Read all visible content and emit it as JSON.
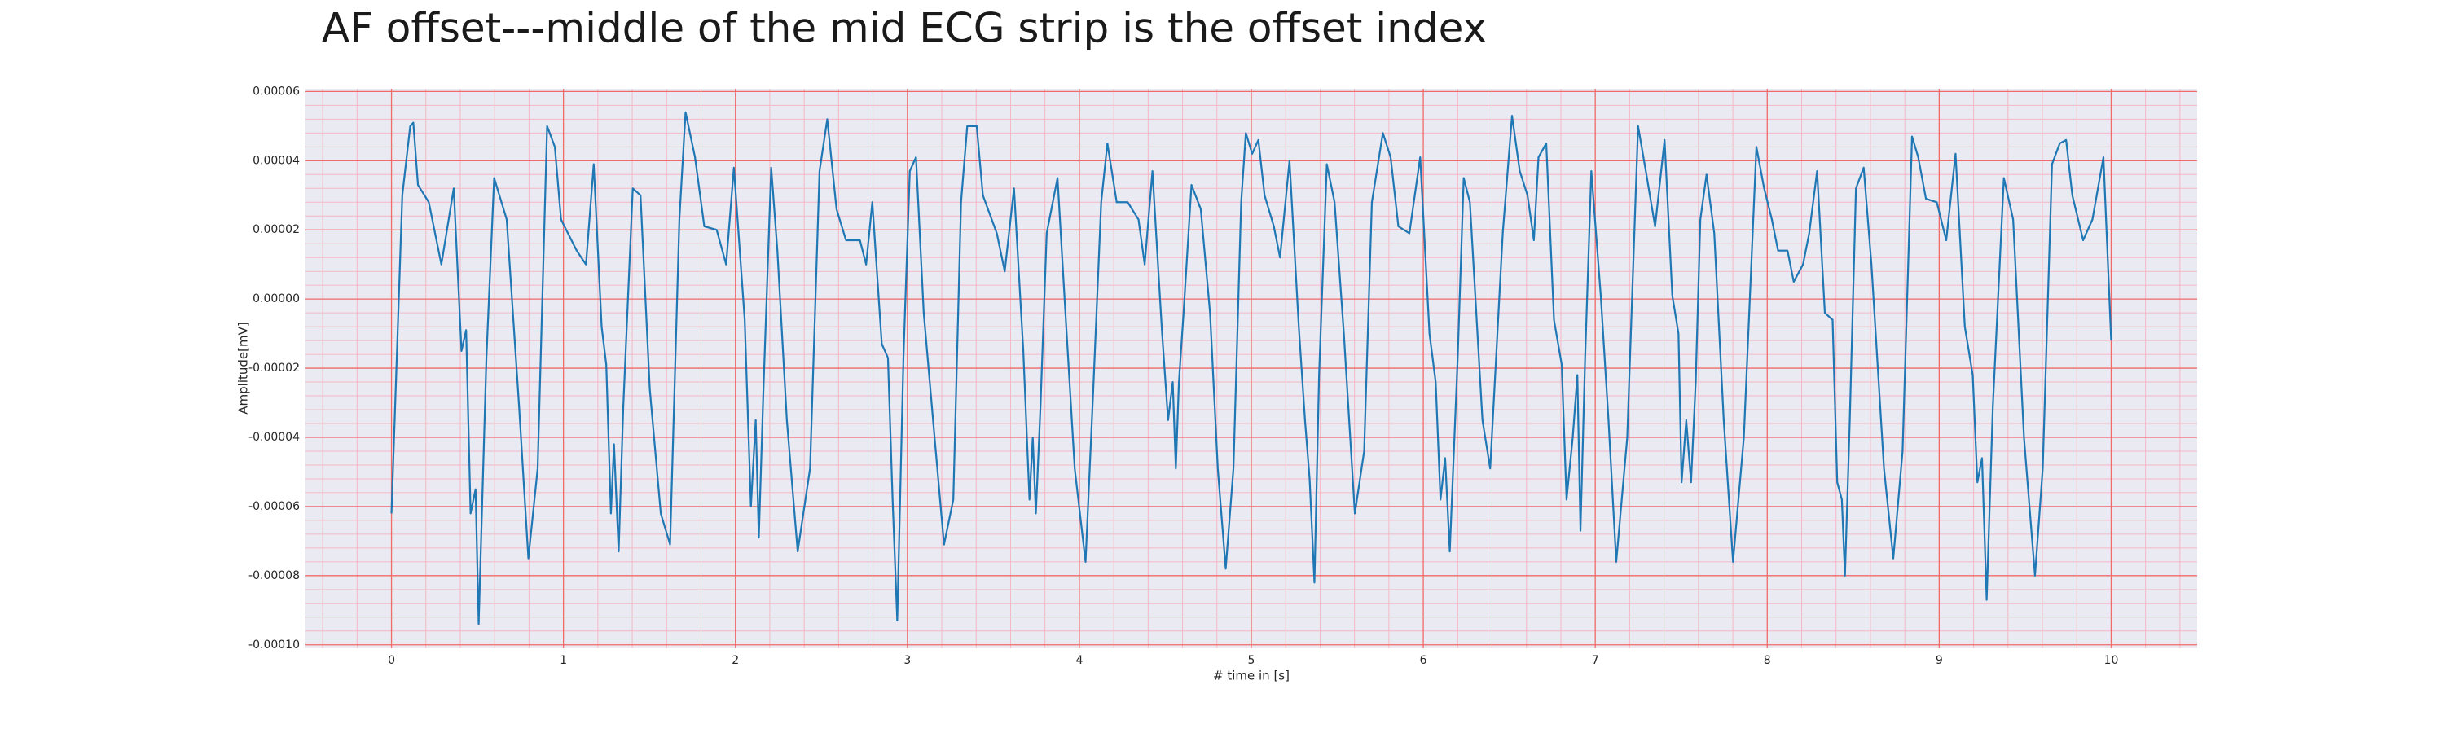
{
  "chart_data": {
    "type": "line",
    "title": "AF offset---middle of the mid ECG strip is the offset index",
    "xlabel": "# time in [s]",
    "ylabel": "Amplitude[mV]",
    "color": "#1f77b4",
    "grid": true,
    "minor_grid": true,
    "xlim": [
      -0.5,
      10.5
    ],
    "ylim": [
      -0.000101,
      6.08e-05
    ],
    "xticks": [
      0,
      1,
      2,
      3,
      4,
      5,
      6,
      7,
      8,
      9,
      10
    ],
    "yticks": [
      {
        "value": -0.0001,
        "label": "-0.00010"
      },
      -8e-05,
      -6e-05,
      -4e-05,
      -2e-05,
      {
        "value": 0,
        "label": "0.00000"
      },
      2e-05,
      4e-05,
      6e-05
    ],
    "x": [
      0,
      0.063,
      0.109,
      0.127,
      0.154,
      0.217,
      0.29,
      0.362,
      0.407,
      0.434,
      0.46,
      0.489,
      0.507,
      0.552,
      0.597,
      0.67,
      0.742,
      0.796,
      0.85,
      0.905,
      0.95,
      0.986,
      1.077,
      1.131,
      1.176,
      1.222,
      1.249,
      1.276,
      1.294,
      1.321,
      1.348,
      1.403,
      1.448,
      1.502,
      1.566,
      1.62,
      1.674,
      1.71,
      1.765,
      1.819,
      1.891,
      1.946,
      1.991,
      2.054,
      2.09,
      2.118,
      2.136,
      2.163,
      2.208,
      2.244,
      2.299,
      2.362,
      2.434,
      2.489,
      2.534,
      2.588,
      2.643,
      2.724,
      2.76,
      2.796,
      2.851,
      2.887,
      2.914,
      2.941,
      2.977,
      3.014,
      3.05,
      3.095,
      3.158,
      3.213,
      3.267,
      3.312,
      3.348,
      3.403,
      3.439,
      3.52,
      3.566,
      3.62,
      3.674,
      3.71,
      3.729,
      3.747,
      3.774,
      3.81,
      3.873,
      3.919,
      3.973,
      4.036,
      4.081,
      4.127,
      4.163,
      4.217,
      4.281,
      4.344,
      4.38,
      4.425,
      4.48,
      4.516,
      4.543,
      4.561,
      4.579,
      4.606,
      4.652,
      4.706,
      4.76,
      4.805,
      4.851,
      4.896,
      4.941,
      4.968,
      5.005,
      5.041,
      5.077,
      5.131,
      5.167,
      5.222,
      5.276,
      5.312,
      5.339,
      5.367,
      5.394,
      5.439,
      5.484,
      5.538,
      5.602,
      5.656,
      5.701,
      5.765,
      5.81,
      5.855,
      5.919,
      5.982,
      6.036,
      6.072,
      6.1,
      6.127,
      6.154,
      6.2,
      6.235,
      6.271,
      6.344,
      6.389,
      6.462,
      6.516,
      6.561,
      6.606,
      6.643,
      6.67,
      6.715,
      6.76,
      6.805,
      6.833,
      6.869,
      6.896,
      6.914,
      6.941,
      6.977,
      7.032,
      7.077,
      7.122,
      7.186,
      7.249,
      7.294,
      7.348,
      7.403,
      7.448,
      7.484,
      7.502,
      7.529,
      7.557,
      7.584,
      7.611,
      7.647,
      7.692,
      7.747,
      7.801,
      7.864,
      7.937,
      7.982,
      8.027,
      8.063,
      8.118,
      8.154,
      8.208,
      8.244,
      8.29,
      8.335,
      8.38,
      8.407,
      8.434,
      8.452,
      8.48,
      8.516,
      8.561,
      8.606,
      8.679,
      8.733,
      8.787,
      8.842,
      8.878,
      8.923,
      8.986,
      9.041,
      9.095,
      9.149,
      9.195,
      9.222,
      9.249,
      9.276,
      9.312,
      9.376,
      9.43,
      9.493,
      9.557,
      9.602,
      9.656,
      9.701,
      9.738,
      9.774,
      9.837,
      9.891,
      9.955,
      10.0
    ],
    "values": [
      -6.2e-05,
      3e-05,
      5e-05,
      5.1e-05,
      3.3e-05,
      2.8e-05,
      1e-05,
      3.2e-05,
      -1.5e-05,
      -9e-06,
      -6.2e-05,
      -5.5e-05,
      -9.4e-05,
      -1.7e-05,
      3.5e-05,
      2.3e-05,
      -3.1e-05,
      -7.5e-05,
      -4.9e-05,
      5e-05,
      4.4e-05,
      2.3e-05,
      1.4e-05,
      1e-05,
      3.9e-05,
      -8e-06,
      -1.9e-05,
      -6.2e-05,
      -4.2e-05,
      -7.3e-05,
      -3.1e-05,
      3.2e-05,
      3e-05,
      -2.6e-05,
      -6.2e-05,
      -7.1e-05,
      2.3e-05,
      5.4e-05,
      4.1e-05,
      2.1e-05,
      2e-05,
      1e-05,
      3.8e-05,
      -6e-06,
      -6e-05,
      -3.5e-05,
      -6.9e-05,
      -2.6e-05,
      3.8e-05,
      1.4e-05,
      -3.5e-05,
      -7.3e-05,
      -4.9e-05,
      3.7e-05,
      5.2e-05,
      2.6e-05,
      1.7e-05,
      1.7e-05,
      1e-05,
      2.8e-05,
      -1.3e-05,
      -1.7e-05,
      -5.8e-05,
      -9.3e-05,
      -1.7e-05,
      3.7e-05,
      4.1e-05,
      -4e-06,
      -4e-05,
      -7.1e-05,
      -5.8e-05,
      2.8e-05,
      5e-05,
      5e-05,
      3e-05,
      1.9e-05,
      8e-06,
      3.2e-05,
      -1.5e-05,
      -5.8e-05,
      -4e-05,
      -6.2e-05,
      -3.1e-05,
      1.9e-05,
      3.5e-05,
      -4e-06,
      -4.9e-05,
      -7.6e-05,
      -2.6e-05,
      2.8e-05,
      4.5e-05,
      2.8e-05,
      2.8e-05,
      2.3e-05,
      1e-05,
      3.7e-05,
      -9e-06,
      -3.5e-05,
      -2.4e-05,
      -4.9e-05,
      -2.4e-05,
      -4e-06,
      3.3e-05,
      2.6e-05,
      -4e-06,
      -4.9e-05,
      -7.8e-05,
      -4.9e-05,
      2.8e-05,
      4.8e-05,
      4.2e-05,
      4.6e-05,
      3e-05,
      2.1e-05,
      1.2e-05,
      4e-05,
      -8e-06,
      -3.5e-05,
      -5.2e-05,
      -8.2e-05,
      -2.2e-05,
      3.9e-05,
      2.8e-05,
      -1e-05,
      -6.2e-05,
      -4.4e-05,
      2.8e-05,
      4.8e-05,
      4.1e-05,
      2.1e-05,
      1.9e-05,
      4.1e-05,
      -1e-05,
      -2.4e-05,
      -5.8e-05,
      -4.6e-05,
      -7.3e-05,
      -1.7e-05,
      3.5e-05,
      2.8e-05,
      -3.5e-05,
      -4.9e-05,
      1.9e-05,
      5.3e-05,
      3.7e-05,
      3e-05,
      1.7e-05,
      4.1e-05,
      4.5e-05,
      -6e-06,
      -1.9e-05,
      -5.8e-05,
      -4e-05,
      -2.2e-05,
      -6.7e-05,
      -1.7e-05,
      3.7e-05,
      1e-06,
      -3.5e-05,
      -7.6e-05,
      -4e-05,
      5e-05,
      3.7e-05,
      2.1e-05,
      4.6e-05,
      1e-06,
      -1e-05,
      -5.3e-05,
      -3.5e-05,
      -5.3e-05,
      -2.4e-05,
      2.3e-05,
      3.6e-05,
      1.9e-05,
      -3.5e-05,
      -7.6e-05,
      -4e-05,
      4.4e-05,
      3.2e-05,
      2.3e-05,
      1.4e-05,
      1.4e-05,
      5e-06,
      1e-05,
      1.9e-05,
      3.7e-05,
      -4e-06,
      -6e-06,
      -5.3e-05,
      -5.8e-05,
      -8e-05,
      -3.5e-05,
      3.2e-05,
      3.8e-05,
      1e-05,
      -4.9e-05,
      -7.5e-05,
      -4.4e-05,
      4.7e-05,
      4.1e-05,
      2.9e-05,
      2.8e-05,
      1.7e-05,
      4.2e-05,
      -8e-06,
      -2.2e-05,
      -5.3e-05,
      -4.6e-05,
      -8.7e-05,
      -3.1e-05,
      3.5e-05,
      2.3e-05,
      -4e-05,
      -8e-05,
      -4.9e-05,
      3.9e-05,
      4.5e-05,
      4.6e-05,
      3e-05,
      1.7e-05,
      2.3e-05,
      4.1e-05,
      -1.2e-05
    ]
  }
}
